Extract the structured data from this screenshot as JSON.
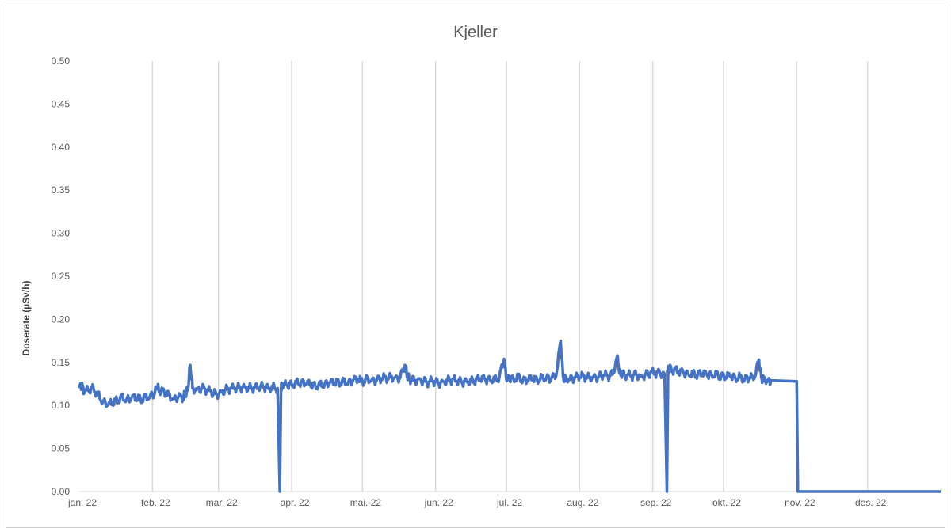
{
  "chart_data": {
    "type": "line",
    "title": "Kjeller",
    "ylabel": "Doserate (µSv/h)",
    "xlabel": "",
    "ylim": [
      0,
      0.5
    ],
    "yticks": [
      "0.00",
      "0.05",
      "0.10",
      "0.15",
      "0.20",
      "0.25",
      "0.30",
      "0.35",
      "0.40",
      "0.45",
      "0.50"
    ],
    "x_tick_labels": [
      "jan. 22",
      "feb. 22",
      "mar. 22",
      "apr. 22",
      "mai. 22",
      "jun. 22",
      "jul. 22",
      "aug. 22",
      "sep. 22",
      "okt. 22",
      "nov. 22",
      "des. 22"
    ],
    "x_range_days": [
      0,
      365
    ],
    "grid": "vertical",
    "series": [
      {
        "color": "#4472c4",
        "points": [
          [
            0,
            0.12
          ],
          [
            1,
            0.125
          ],
          [
            2,
            0.115
          ],
          [
            4,
            0.118
          ],
          [
            6,
            0.12
          ],
          [
            8,
            0.112
          ],
          [
            10,
            0.105
          ],
          [
            12,
            0.1
          ],
          [
            14,
            0.103
          ],
          [
            16,
            0.106
          ],
          [
            18,
            0.11
          ],
          [
            20,
            0.107
          ],
          [
            22,
            0.108
          ],
          [
            24,
            0.109
          ],
          [
            26,
            0.107
          ],
          [
            28,
            0.11
          ],
          [
            30,
            0.111
          ],
          [
            32,
            0.114
          ],
          [
            33,
            0.122
          ],
          [
            34,
            0.115
          ],
          [
            36,
            0.116
          ],
          [
            38,
            0.112
          ],
          [
            40,
            0.108
          ],
          [
            42,
            0.11
          ],
          [
            44,
            0.109
          ],
          [
            45,
            0.112
          ],
          [
            46,
            0.118
          ],
          [
            47,
            0.147
          ],
          [
            48,
            0.12
          ],
          [
            50,
            0.119
          ],
          [
            52,
            0.12
          ],
          [
            54,
            0.118
          ],
          [
            56,
            0.115
          ],
          [
            58,
            0.113
          ],
          [
            60,
            0.116
          ],
          [
            62,
            0.118
          ],
          [
            64,
            0.12
          ],
          [
            66,
            0.119
          ],
          [
            68,
            0.121
          ],
          [
            70,
            0.122
          ],
          [
            72,
            0.12
          ],
          [
            74,
            0.121
          ],
          [
            76,
            0.12
          ],
          [
            78,
            0.122
          ],
          [
            80,
            0.121
          ],
          [
            82,
            0.121
          ],
          [
            84,
            0.12
          ],
          [
            85,
            0
          ],
          [
            85.5,
            0.121
          ],
          [
            86,
            0.122
          ],
          [
            88,
            0.124
          ],
          [
            90,
            0.125
          ],
          [
            92,
            0.126
          ],
          [
            94,
            0.127
          ],
          [
            96,
            0.125
          ],
          [
            98,
            0.124
          ],
          [
            100,
            0.123
          ],
          [
            102,
            0.124
          ],
          [
            104,
            0.125
          ],
          [
            106,
            0.126
          ],
          [
            108,
            0.126
          ],
          [
            110,
            0.127
          ],
          [
            112,
            0.128
          ],
          [
            114,
            0.127
          ],
          [
            116,
            0.129
          ],
          [
            118,
            0.13
          ],
          [
            120,
            0.128
          ],
          [
            122,
            0.131
          ],
          [
            124,
            0.13
          ],
          [
            126,
            0.129
          ],
          [
            128,
            0.131
          ],
          [
            130,
            0.132
          ],
          [
            132,
            0.133
          ],
          [
            134,
            0.133
          ],
          [
            136,
            0.132
          ],
          [
            138,
            0.147
          ],
          [
            139,
            0.133
          ],
          [
            140,
            0.131
          ],
          [
            142,
            0.129
          ],
          [
            144,
            0.131
          ],
          [
            146,
            0.128
          ],
          [
            148,
            0.127
          ],
          [
            150,
            0.128
          ],
          [
            152,
            0.126
          ],
          [
            154,
            0.128
          ],
          [
            156,
            0.129
          ],
          [
            158,
            0.13
          ],
          [
            160,
            0.128
          ],
          [
            162,
            0.127
          ],
          [
            164,
            0.129
          ],
          [
            166,
            0.128
          ],
          [
            168,
            0.13
          ],
          [
            170,
            0.131
          ],
          [
            172,
            0.13
          ],
          [
            174,
            0.131
          ],
          [
            176,
            0.13
          ],
          [
            178,
            0.133
          ],
          [
            180,
            0.154
          ],
          [
            181,
            0.13
          ],
          [
            182,
            0.132
          ],
          [
            184,
            0.131
          ],
          [
            186,
            0.133
          ],
          [
            188,
            0.13
          ],
          [
            190,
            0.129
          ],
          [
            192,
            0.131
          ],
          [
            194,
            0.13
          ],
          [
            196,
            0.132
          ],
          [
            198,
            0.133
          ],
          [
            200,
            0.131
          ],
          [
            202,
            0.134
          ],
          [
            204,
            0.175
          ],
          [
            205,
            0.133
          ],
          [
            206,
            0.131
          ],
          [
            208,
            0.132
          ],
          [
            210,
            0.132
          ],
          [
            212,
            0.133
          ],
          [
            214,
            0.134
          ],
          [
            216,
            0.132
          ],
          [
            218,
            0.134
          ],
          [
            220,
            0.133
          ],
          [
            222,
            0.135
          ],
          [
            224,
            0.134
          ],
          [
            226,
            0.136
          ],
          [
            228,
            0.158
          ],
          [
            229,
            0.137
          ],
          [
            230,
            0.136
          ],
          [
            232,
            0.135
          ],
          [
            234,
            0.134
          ],
          [
            236,
            0.136
          ],
          [
            238,
            0.134
          ],
          [
            240,
            0.136
          ],
          [
            242,
            0.138
          ],
          [
            244,
            0.137
          ],
          [
            246,
            0.138
          ],
          [
            248,
            0.136
          ],
          [
            249,
            0
          ],
          [
            249.5,
            0.14
          ],
          [
            250,
            0.143
          ],
          [
            252,
            0.141
          ],
          [
            254,
            0.139
          ],
          [
            256,
            0.138
          ],
          [
            258,
            0.137
          ],
          [
            260,
            0.137
          ],
          [
            262,
            0.136
          ],
          [
            264,
            0.137
          ],
          [
            266,
            0.135
          ],
          [
            268,
            0.136
          ],
          [
            270,
            0.136
          ],
          [
            272,
            0.134
          ],
          [
            274,
            0.133
          ],
          [
            276,
            0.134
          ],
          [
            278,
            0.132
          ],
          [
            280,
            0.133
          ],
          [
            282,
            0.131
          ],
          [
            284,
            0.132
          ],
          [
            286,
            0.131
          ],
          [
            288,
            0.153
          ],
          [
            289,
            0.132
          ],
          [
            290,
            0.131
          ],
          [
            292,
            0.13
          ],
          [
            293,
            0.129
          ],
          [
            304,
            0.128
          ],
          [
            304.5,
            0
          ],
          [
            365,
            0
          ]
        ]
      }
    ]
  }
}
